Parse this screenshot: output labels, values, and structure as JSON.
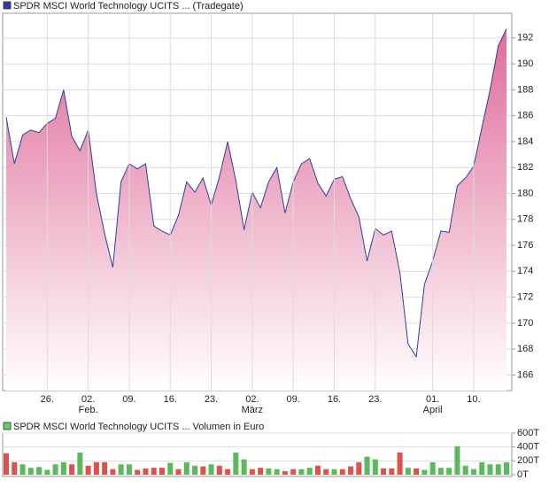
{
  "chart_data": [
    {
      "type": "area",
      "series": [
        {
          "name": "SPDR MSCI World Technology UCITS ... (Tradegate)",
          "color": "#2b3f9e",
          "fill_top": "#e06c98",
          "fill_bottom": "#ffffff",
          "values": [
            185.9,
            182.3,
            184.5,
            184.9,
            184.7,
            185.4,
            185.8,
            188.0,
            184.4,
            183.3,
            184.9,
            180.0,
            176.9,
            174.3,
            180.9,
            182.3,
            181.9,
            182.3,
            177.5,
            177.1,
            176.8,
            178.3,
            180.9,
            180.1,
            181.2,
            179.1,
            181.3,
            184.0,
            181.0,
            177.2,
            180.1,
            178.9,
            180.9,
            182.0,
            178.5,
            180.9,
            182.3,
            182.7,
            180.8,
            179.8,
            181.1,
            181.3,
            179.6,
            178.2,
            174.8,
            177.3,
            176.8,
            177.1,
            173.9,
            168.4,
            167.4,
            173.0,
            174.8,
            177.1,
            177.0,
            180.6,
            181.2,
            182.1,
            185.1,
            188.0,
            191.4,
            192.7
          ]
        }
      ],
      "categories": [
        null,
        null,
        null,
        null,
        null,
        "26.",
        null,
        null,
        null,
        null,
        "02.",
        null,
        null,
        null,
        null,
        "09.",
        null,
        null,
        null,
        null,
        "16.",
        null,
        null,
        null,
        null,
        "23.",
        null,
        null,
        null,
        null,
        "02.",
        null,
        null,
        null,
        null,
        "09.",
        null,
        null,
        null,
        null,
        "16.",
        null,
        null,
        null,
        null,
        "23.",
        null,
        null,
        null,
        null,
        null,
        null,
        "01.",
        null,
        null,
        null,
        null,
        "10.",
        null,
        null,
        null,
        null
      ],
      "month_labels": [
        null,
        null,
        null,
        null,
        null,
        null,
        null,
        null,
        null,
        null,
        "Feb.",
        null,
        null,
        null,
        null,
        null,
        null,
        null,
        null,
        null,
        null,
        null,
        null,
        null,
        null,
        null,
        null,
        null,
        null,
        null,
        "März",
        null,
        null,
        null,
        null,
        null,
        null,
        null,
        null,
        null,
        null,
        null,
        null,
        null,
        null,
        null,
        null,
        null,
        null,
        null,
        null,
        null,
        "April",
        null,
        null,
        null,
        null,
        null,
        null,
        null,
        null,
        null
      ],
      "ylim": [
        164.8,
        193.9
      ],
      "yticks": [
        166,
        168,
        170,
        172,
        174,
        176,
        178,
        180,
        182,
        184,
        186,
        188,
        190,
        192
      ],
      "grid": true
    },
    {
      "type": "bar",
      "series": [
        {
          "name": "SPDR MSCI World Technology UCITS ... Volumen in Euro",
          "color": "#66cc66",
          "values": [
            310,
            180,
            150,
            100,
            110,
            70,
            150,
            180,
            150,
            320,
            130,
            180,
            180,
            80,
            150,
            150,
            70,
            90,
            100,
            100,
            170,
            80,
            180,
            130,
            120,
            150,
            130,
            80,
            320,
            220,
            80,
            100,
            90,
            80,
            50,
            80,
            80,
            100,
            130,
            80,
            80,
            80,
            120,
            180,
            260,
            220,
            90,
            90,
            320,
            100,
            90,
            70,
            180,
            100,
            100,
            410,
            130,
            80,
            180,
            150,
            150,
            180
          ],
          "colors": [
            "#d9534f",
            "#d9534f",
            "#5cb85c",
            "#5cb85c",
            "#5cb85c",
            "#5cb85c",
            "#5cb85c",
            "#5cb85c",
            "#d9534f",
            "#5cb85c",
            "#d9534f",
            "#d9534f",
            "#d9534f",
            "#d9534f",
            "#5cb85c",
            "#5cb85c",
            "#d9534f",
            "#d9534f",
            "#d9534f",
            "#d9534f",
            "#5cb85c",
            "#d9534f",
            "#5cb85c",
            "#5cb85c",
            "#d9534f",
            "#5cb85c",
            "#d9534f",
            "#d9534f",
            "#5cb85c",
            "#5cb85c",
            "#d9534f",
            "#d9534f",
            "#5cb85c",
            "#5cb85c",
            "#d9534f",
            "#d9534f",
            "#5cb85c",
            "#5cb85c",
            "#d9534f",
            "#d9534f",
            "#5cb85c",
            "#d9534f",
            "#d9534f",
            "#d9534f",
            "#5cb85c",
            "#5cb85c",
            "#d9534f",
            "#d9534f",
            "#d9534f",
            "#5cb85c",
            "#d9534f",
            "#5cb85c",
            "#5cb85c",
            "#5cb85c",
            "#5cb85c",
            "#5cb85c",
            "#5cb85c",
            "#5cb85c",
            "#5cb85c",
            "#5cb85c",
            "#5cb85c",
            "#5cb85c"
          ]
        }
      ],
      "ylim": [
        0,
        600
      ],
      "yticks": [
        {
          "value": 0,
          "label": "0T"
        },
        {
          "value": 200,
          "label": "200T"
        },
        {
          "value": 400,
          "label": "400T"
        },
        {
          "value": 600,
          "label": "600T"
        }
      ],
      "grid": true
    }
  ]
}
